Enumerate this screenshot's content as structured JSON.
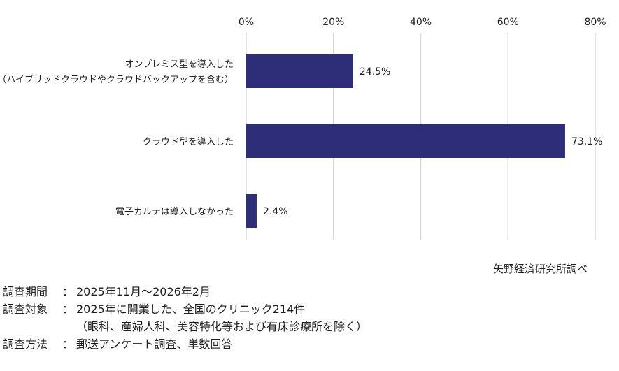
{
  "chart_data": {
    "type": "bar",
    "orientation": "horizontal",
    "categories": [
      [
        "オンプレミス型を導入した",
        "（ハイブリッドクラウドやクラウドバックアップを含む）"
      ],
      [
        "クラウド型を導入した"
      ],
      [
        "電子カルテは導入しなかった"
      ]
    ],
    "values": [
      24.5,
      73.1,
      2.4
    ],
    "data_labels": [
      "24.5%",
      "73.1%",
      "2.4%"
    ],
    "xlim": [
      0,
      80
    ],
    "xticks": [
      0,
      20,
      40,
      60,
      80
    ],
    "xtick_labels": [
      "0%",
      "20%",
      "40%",
      "60%",
      "80%"
    ],
    "axis_position": "top",
    "grid": "vertical",
    "bar_color": "#2e2e78",
    "grid_color": "#d9d9d9",
    "legend": "none"
  },
  "source": "矢野経済研究所調べ",
  "notes": [
    {
      "key": "調査期間",
      "sep": "：",
      "lines": [
        "2025年11月～2026年2月"
      ]
    },
    {
      "key": "調査対象",
      "sep": "：",
      "lines": [
        "2025年に開業した、全国のクリニック214件",
        "（眼科、産婦人科、美容特化等および有床診療所を除く）"
      ]
    },
    {
      "key": "調査方法",
      "sep": "：",
      "lines": [
        "郵送アンケート調査、単数回答"
      ]
    }
  ]
}
